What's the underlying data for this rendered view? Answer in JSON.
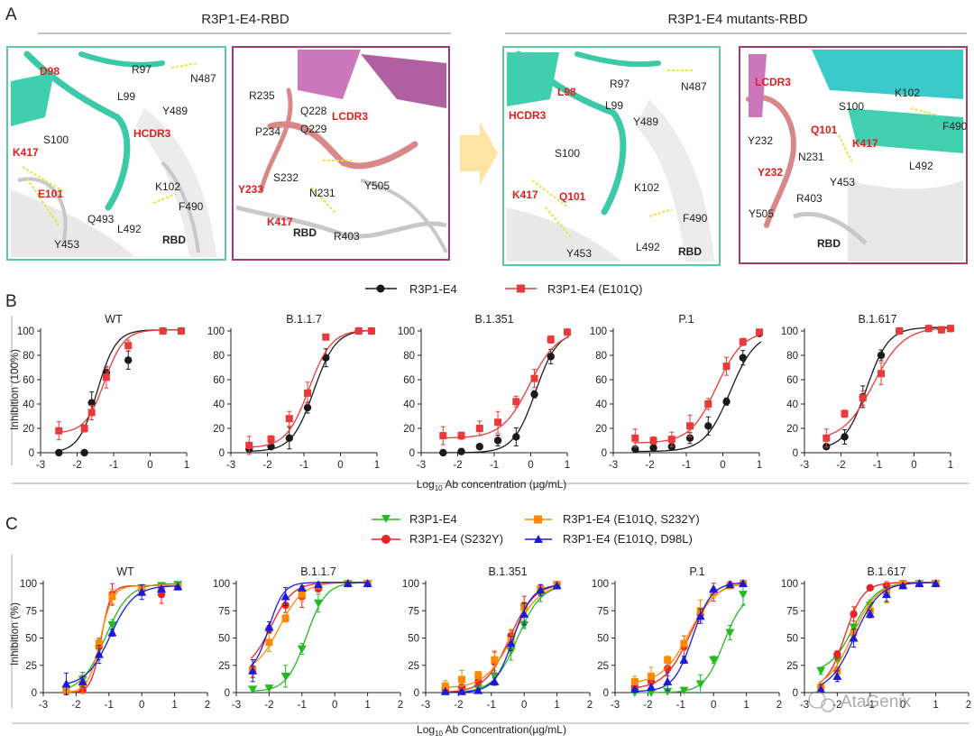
{
  "panel_letters": {
    "a": "A",
    "b": "B",
    "c": "C"
  },
  "panel_a": {
    "left_header": "R3P1-E4-RBD",
    "right_header": "R3P1-E4 mutants-RBD",
    "box1": [
      {
        "t": "D98",
        "red": true
      },
      {
        "t": "R97"
      },
      {
        "t": "N487"
      },
      {
        "t": "L99"
      },
      {
        "t": "Y489"
      },
      {
        "t": "HCDR3",
        "red": true
      },
      {
        "t": "S100"
      },
      {
        "t": "K417",
        "red": true
      },
      {
        "t": "E101",
        "red": true
      },
      {
        "t": "K102"
      },
      {
        "t": "F490"
      },
      {
        "t": "Q493"
      },
      {
        "t": "L492"
      },
      {
        "t": "RBD",
        "bold": true
      },
      {
        "t": "Y453"
      }
    ],
    "box2": [
      {
        "t": "R235"
      },
      {
        "t": "Q228"
      },
      {
        "t": "P234"
      },
      {
        "t": "Q229"
      },
      {
        "t": "LCDR3",
        "red": true
      },
      {
        "t": "S232"
      },
      {
        "t": "Y233",
        "red": true
      },
      {
        "t": "N231"
      },
      {
        "t": "Y505"
      },
      {
        "t": "K417",
        "red": true
      },
      {
        "t": "RBD",
        "bold": true
      },
      {
        "t": "R403"
      }
    ],
    "box3": [
      {
        "t": "R97"
      },
      {
        "t": "N487"
      },
      {
        "t": "L98",
        "red": true
      },
      {
        "t": "L99"
      },
      {
        "t": "HCDR3",
        "red": true
      },
      {
        "t": "Y489"
      },
      {
        "t": "S100"
      },
      {
        "t": "K417",
        "red": true
      },
      {
        "t": "Q101",
        "red": true
      },
      {
        "t": "K102"
      },
      {
        "t": "F490"
      },
      {
        "t": "L492"
      },
      {
        "t": "RBD",
        "bold": true
      },
      {
        "t": "Y453"
      }
    ],
    "box4": [
      {
        "t": "LCDR3",
        "red": true
      },
      {
        "t": "K102"
      },
      {
        "t": "S100"
      },
      {
        "t": "Q101",
        "red": true
      },
      {
        "t": "F490"
      },
      {
        "t": "Y232"
      },
      {
        "t": "K417",
        "red": true
      },
      {
        "t": "N231"
      },
      {
        "t": "L492"
      },
      {
        "t": "Y232",
        "red": true
      },
      {
        "t": "Y453"
      },
      {
        "t": "R403"
      },
      {
        "t": "Y505"
      },
      {
        "t": "RBD",
        "bold": true
      }
    ]
  },
  "chart_data": [
    {
      "type": "line",
      "panel": "B",
      "legend": [
        "R3P1-E4",
        "R3P1-E4 (E101Q)"
      ],
      "colors": [
        "#1a1a1a",
        "#e83a3a"
      ],
      "ylabel": "Inhibition (100%)",
      "xlabel": "Log10 Ab concentration (µg/mL)",
      "xlabel_main": "Log",
      "xlabel_sub": "10",
      "xlabel_rest": " Ab concentration (µg/mL)",
      "ylim": [
        0,
        100
      ],
      "yticks": [
        "0",
        "20",
        "40",
        "60",
        "80",
        "100"
      ],
      "subplots": [
        {
          "title": "WT",
          "xlim": [
            -3,
            1
          ],
          "xticks": [
            "-3",
            "-2",
            "-1",
            "0",
            "1"
          ],
          "series": [
            {
              "x": [
                -2.5,
                -1.8,
                -1.6,
                -1.2,
                -0.6,
                0.35,
                0.85
              ],
              "y": [
                0,
                0,
                41,
                66,
                76,
                100,
                100
              ]
            },
            {
              "x": [
                -2.5,
                -1.8,
                -1.6,
                -1.2,
                -0.6,
                0.35,
                0.85
              ],
              "y": [
                18,
                20,
                33,
                62,
                88,
                100,
                100
              ]
            }
          ]
        },
        {
          "title": "B.1.1.7",
          "xlim": [
            -3,
            1
          ],
          "xticks": [
            "-3",
            "-2",
            "-1",
            "0",
            "1"
          ],
          "series": [
            {
              "x": [
                -2.5,
                -1.9,
                -1.4,
                -0.9,
                -0.4,
                0.5,
                0.85
              ],
              "y": [
                3,
                5,
                12,
                37,
                78,
                100,
                100
              ]
            },
            {
              "x": [
                -2.5,
                -1.9,
                -1.4,
                -0.9,
                -0.4,
                0.5,
                0.85
              ],
              "y": [
                6,
                11,
                28,
                49,
                95,
                100,
                100
              ]
            }
          ]
        },
        {
          "title": "B.1.351",
          "xlim": [
            -3,
            1
          ],
          "xticks": [
            "-3",
            "-2",
            "-1",
            "0",
            "1"
          ],
          "series": [
            {
              "x": [
                -2.4,
                -1.9,
                -1.4,
                -0.9,
                -0.4,
                0.1,
                0.55,
                1.0
              ],
              "y": [
                0,
                1,
                5,
                10,
                13,
                48,
                79,
                99
              ]
            },
            {
              "x": [
                -2.4,
                -1.9,
                -1.4,
                -0.9,
                -0.4,
                0.1,
                0.55,
                1.0
              ],
              "y": [
                14,
                14,
                20,
                25,
                42,
                61,
                93,
                99
              ]
            }
          ]
        },
        {
          "title": "P.1",
          "xlim": [
            -3,
            1
          ],
          "xticks": [
            "-3",
            "-2",
            "-1",
            "0",
            "1"
          ],
          "series": [
            {
              "x": [
                -2.4,
                -1.9,
                -1.4,
                -0.9,
                -0.4,
                0.1,
                0.55,
                1.0
              ],
              "y": [
                3,
                4,
                5,
                12,
                22,
                42,
                78,
                98
              ]
            },
            {
              "x": [
                -2.4,
                -1.9,
                -1.4,
                -0.9,
                -0.4,
                0.1,
                0.55,
                1.0
              ],
              "y": [
                12,
                10,
                11,
                22,
                40,
                71,
                91,
                99
              ]
            }
          ]
        },
        {
          "title": "B.1.617",
          "xlim": [
            -3,
            1
          ],
          "xticks": [
            "-3",
            "-2",
            "-1",
            "0",
            "1"
          ],
          "series": [
            {
              "x": [
                -2.4,
                -1.9,
                -1.4,
                -0.9,
                -0.4,
                0.4,
                0.75,
                1.0
              ],
              "y": [
                5,
                13,
                46,
                80,
                100,
                102,
                101,
                102
              ]
            },
            {
              "x": [
                -2.4,
                -1.9,
                -1.4,
                -0.9,
                -0.4,
                0.4,
                0.75,
                1.0
              ],
              "y": [
                12,
                32,
                45,
                65,
                100,
                102,
                101,
                102
              ]
            }
          ]
        }
      ]
    },
    {
      "type": "line",
      "panel": "C",
      "legend": [
        "R3P1-E4",
        "R3P1-E4 (S232Y)",
        "R3P1-E4 (E101Q, S232Y)",
        "R3P1-E4 (E101Q, D98L)"
      ],
      "colors": [
        "#22bb22",
        "#ee2222",
        "#ff8800",
        "#1a1ad9"
      ],
      "markers": [
        "triangle-down",
        "circle",
        "square",
        "triangle-up"
      ],
      "ylabel": "Inhibition (%)",
      "xlabel": "Log10 Ab Concentration(µg/mL)",
      "xlabel_main": "Log",
      "xlabel_sub": "10",
      "xlabel_rest": " Ab Concentration(µg/mL)",
      "ylim": [
        0,
        100
      ],
      "yticks": [
        "0",
        "25",
        "50",
        "75",
        "100"
      ],
      "subplots": [
        {
          "title": "WT",
          "xlim": [
            -3,
            2
          ],
          "xticks": [
            "-3",
            "-2",
            "-1",
            "0",
            "1",
            "2"
          ],
          "series": [
            {
              "x": [
                -2.3,
                -1.8,
                -1.3,
                -0.9,
                0.0,
                0.6,
                1.1
              ],
              "y": [
                2,
                12,
                40,
                62,
                96,
                98,
                99
              ]
            },
            {
              "x": [
                -2.3,
                -1.8,
                -1.3,
                -0.9,
                0.0,
                0.6,
                1.1
              ],
              "y": [
                1,
                2,
                42,
                90,
                94,
                90,
                97
              ]
            },
            {
              "x": [
                -2.3,
                -1.8,
                -1.3,
                -0.9,
                0.0,
                0.6,
                1.1
              ],
              "y": [
                2,
                8,
                45,
                88,
                95,
                96,
                97
              ]
            },
            {
              "x": [
                -2.3,
                -1.8,
                -1.3,
                -0.9,
                0.0,
                0.6,
                1.1
              ],
              "y": [
                8,
                10,
                35,
                55,
                92,
                95,
                97
              ]
            }
          ]
        },
        {
          "title": "B.1.1.7",
          "xlim": [
            -3,
            2
          ],
          "xticks": [
            "-3",
            "-2",
            "-1",
            "0",
            "1",
            "2"
          ],
          "series": [
            {
              "x": [
                -2.5,
                -2.0,
                -1.5,
                -1.0,
                -0.5,
                0.4,
                1.0
              ],
              "y": [
                3,
                4,
                15,
                40,
                82,
                100,
                100
              ]
            },
            {
              "x": [
                -2.5,
                -2.0,
                -1.5,
                -1.0,
                -0.5,
                0.4,
                1.0
              ],
              "y": [
                22,
                58,
                80,
                88,
                95,
                100,
                100
              ]
            },
            {
              "x": [
                -2.5,
                -2.0,
                -1.5,
                -1.0,
                -0.5,
                0.4,
                1.0
              ],
              "y": [
                20,
                46,
                68,
                90,
                98,
                100,
                100
              ]
            },
            {
              "x": [
                -2.5,
                -2.0,
                -1.5,
                -1.0,
                -0.5,
                0.4,
                1.0
              ],
              "y": [
                20,
                60,
                88,
                96,
                99,
                100,
                100
              ]
            }
          ]
        },
        {
          "title": "B.1.351",
          "xlim": [
            -3,
            2
          ],
          "xticks": [
            "-3",
            "-2",
            "-1",
            "0",
            "1",
            "2"
          ],
          "series": [
            {
              "x": [
                -2.4,
                -1.9,
                -1.4,
                -0.9,
                -0.4,
                0.0,
                0.5,
                1.0
              ],
              "y": [
                1,
                2,
                4,
                15,
                38,
                62,
                90,
                98
              ]
            },
            {
              "x": [
                -2.4,
                -1.9,
                -1.4,
                -0.9,
                -0.4,
                0.0,
                0.5,
                1.0
              ],
              "y": [
                2,
                5,
                10,
                28,
                52,
                80,
                96,
                99
              ]
            },
            {
              "x": [
                -2.4,
                -1.9,
                -1.4,
                -0.9,
                -0.4,
                0.0,
                0.5,
                1.0
              ],
              "y": [
                6,
                12,
                16,
                30,
                48,
                78,
                95,
                99
              ]
            },
            {
              "x": [
                -2.4,
                -1.9,
                -1.4,
                -0.9,
                -0.4,
                0.0,
                0.5,
                1.0
              ],
              "y": [
                1,
                1,
                2,
                10,
                45,
                72,
                94,
                98
              ]
            }
          ]
        },
        {
          "title": "P.1",
          "xlim": [
            -3,
            2
          ],
          "xticks": [
            "-3",
            "-2",
            "-1",
            "0",
            "1",
            "2"
          ],
          "series": [
            {
              "x": [
                -2.4,
                -1.9,
                -1.4,
                -0.9,
                -0.4,
                0.0,
                0.5,
                0.9
              ],
              "y": [
                0,
                0,
                1,
                2,
                8,
                30,
                55,
                90
              ]
            },
            {
              "x": [
                -2.4,
                -1.9,
                -1.4,
                -0.9,
                -0.4,
                0.0,
                0.5,
                0.9
              ],
              "y": [
                5,
                10,
                22,
                42,
                72,
                92,
                99,
                100
              ]
            },
            {
              "x": [
                -2.4,
                -1.9,
                -1.4,
                -0.9,
                -0.4,
                0.0,
                0.5,
                0.9
              ],
              "y": [
                10,
                15,
                30,
                45,
                75,
                92,
                98,
                100
              ]
            },
            {
              "x": [
                -2.4,
                -1.9,
                -1.4,
                -0.9,
                -0.4,
                0.0,
                0.5,
                0.9
              ],
              "y": [
                3,
                5,
                10,
                30,
                70,
                95,
                99,
                100
              ]
            }
          ]
        },
        {
          "title": "B.1.617",
          "xlim": [
            -3,
            2
          ],
          "xticks": [
            "-3",
            "-2",
            "-1",
            "0",
            "1",
            "2"
          ],
          "series": [
            {
              "x": [
                -2.5,
                -2.0,
                -1.5,
                -1.0,
                -0.5,
                0.0,
                0.5,
                1.0
              ],
              "y": [
                20,
                30,
                60,
                80,
                92,
                98,
                100,
                100
              ]
            },
            {
              "x": [
                -2.5,
                -2.0,
                -1.5,
                -1.0,
                -0.5,
                0.0,
                0.5,
                1.0
              ],
              "y": [
                5,
                35,
                72,
                96,
                98,
                100,
                100,
                100
              ]
            },
            {
              "x": [
                -2.5,
                -2.0,
                -1.5,
                -1.0,
                -0.5,
                0.0,
                0.5,
                1.0
              ],
              "y": [
                5,
                20,
                55,
                75,
                92,
                100,
                100,
                100
              ]
            },
            {
              "x": [
                -2.5,
                -2.0,
                -1.5,
                -1.0,
                -0.5,
                0.0,
                0.5,
                1.0
              ],
              "y": [
                3,
                15,
                50,
                72,
                90,
                98,
                100,
                100
              ]
            }
          ]
        }
      ]
    }
  ],
  "watermark": "AtaGenix"
}
